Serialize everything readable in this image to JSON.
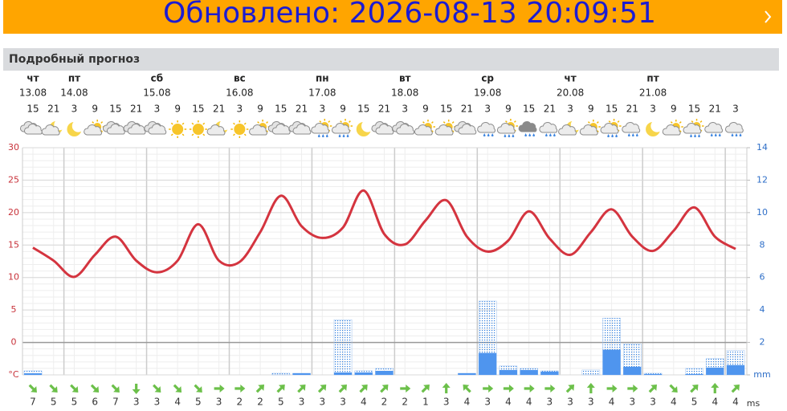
{
  "banner": {
    "text": "Обновлено: 2026-08-13 20:09:51"
  },
  "section_title": "Подробный прогноз",
  "days": [
    {
      "name": "чт",
      "date": "13.08"
    },
    {
      "name": "пт",
      "date": "14.08"
    },
    {
      "name": "сб",
      "date": "15.08"
    },
    {
      "name": "вс",
      "date": "16.08"
    },
    {
      "name": "пн",
      "date": "17.08"
    },
    {
      "name": "вт",
      "date": "18.08"
    },
    {
      "name": "ср",
      "date": "19.08"
    },
    {
      "name": "чт",
      "date": "20.08"
    },
    {
      "name": "пт",
      "date": "21.08"
    }
  ],
  "chart_data": {
    "type": "line",
    "categories": [
      15,
      21,
      3,
      9,
      15,
      21,
      3,
      9,
      15,
      21,
      3,
      9,
      15,
      21,
      3,
      9,
      15,
      21,
      3,
      9,
      15,
      21,
      3,
      9,
      15,
      21,
      3,
      9,
      15,
      21,
      3,
      9,
      15,
      21,
      3
    ],
    "series": [
      {
        "type": "line",
        "color": "#d4343f",
        "values": [
          14.6,
          12.6,
          10.1,
          13.5,
          16.3,
          12.6,
          10.8,
          12.6,
          18.2,
          12.6,
          12.4,
          17.0,
          22.6,
          17.9,
          16.1,
          17.7,
          23.4,
          16.7,
          15.1,
          18.8,
          21.9,
          16.3,
          14.0,
          15.7,
          20.2,
          16.0,
          13.5,
          17.0,
          20.5,
          16.3,
          14.1,
          17.2,
          20.8,
          16.3,
          14.4
        ]
      },
      {
        "type": "bar",
        "axis": "y2",
        "color": "#2f7fe0",
        "pattern": "dotted",
        "values": [
          0.25,
          0,
          0,
          0,
          0,
          0,
          0,
          0,
          0,
          0,
          0,
          0,
          0.1,
          0.1,
          0,
          3.4,
          0.25,
          0.4,
          0,
          0,
          0,
          0.1,
          4.55,
          0.55,
          0.4,
          0.25,
          0,
          0.3,
          3.5,
          1.9,
          0.1,
          0,
          0.4,
          1.0,
          1.5
        ]
      },
      {
        "type": "bar",
        "axis": "y2",
        "color": "#4f95ee",
        "values": [
          0.1,
          0,
          0,
          0,
          0,
          0,
          0,
          0,
          0,
          0,
          0,
          0,
          0,
          0.1,
          0,
          0.15,
          0.15,
          0.25,
          0,
          0,
          0,
          0.1,
          1.35,
          0.3,
          0.3,
          0.2,
          0,
          0,
          1.55,
          0.5,
          0.05,
          0,
          0.05,
          0.45,
          0.6
        ]
      }
    ],
    "ylim": [
      -5,
      30
    ],
    "yticks": [
      {
        "value": -5,
        "label": "°С"
      },
      0,
      5,
      10,
      15,
      20,
      25,
      30
    ],
    "y2lim": [
      0,
      14
    ],
    "y2ticks": [
      {
        "value": 0,
        "label": "mm"
      },
      2,
      4,
      6,
      8,
      10,
      12,
      14
    ],
    "grid": true,
    "wind_speed": [
      7,
      5,
      5,
      6,
      7,
      3,
      3,
      4,
      5,
      3,
      2,
      2,
      5,
      3,
      3,
      3,
      4,
      2,
      2,
      1,
      3,
      4,
      3,
      4,
      4,
      3,
      3,
      3,
      4,
      3,
      3,
      4,
      5,
      4,
      4
    ],
    "wind_direction": [
      135,
      135,
      135,
      135,
      135,
      180,
      135,
      135,
      135,
      90,
      90,
      45,
      45,
      45,
      45,
      45,
      45,
      45,
      90,
      45,
      0,
      315,
      90,
      90,
      90,
      90,
      45,
      0,
      90,
      90,
      45,
      135,
      45,
      0,
      45
    ],
    "wind_unit": "ms"
  }
}
